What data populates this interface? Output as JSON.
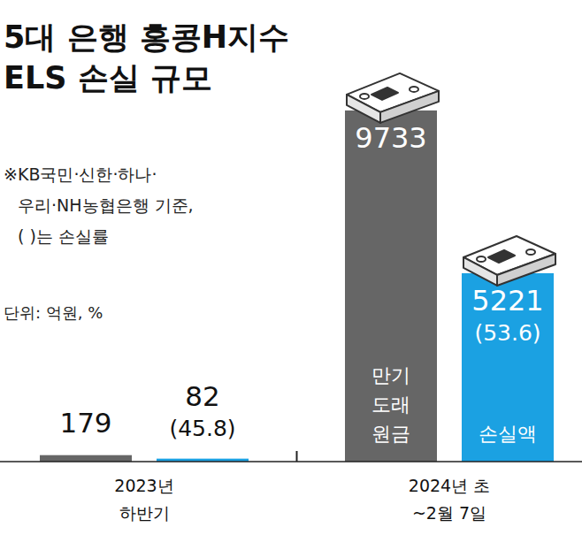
{
  "chart_data": {
    "type": "bar",
    "title": "5대 은행 홍콩H지수 ELS 손실 규모",
    "note": "※KB국민·신한·하나·우리·NH농협은행 기준, ( )는 손실률",
    "unit": "단위: 억원, %",
    "categories": [
      "2023년 하반기",
      "2024년 초 ~2월 7일"
    ],
    "series": [
      {
        "name": "만기 도래 원금",
        "color": "#666666",
        "values": [
          179,
          9733
        ]
      },
      {
        "name": "손실액",
        "color": "#1ba1e2",
        "values": [
          82,
          5221
        ],
        "loss_rates": [
          45.8,
          53.6
        ],
        "loss_rate_labels": [
          "(45.8)",
          "(53.6)"
        ]
      }
    ],
    "ylim": [
      0,
      10000
    ],
    "data_labels": true,
    "tick_labels": false
  }
}
